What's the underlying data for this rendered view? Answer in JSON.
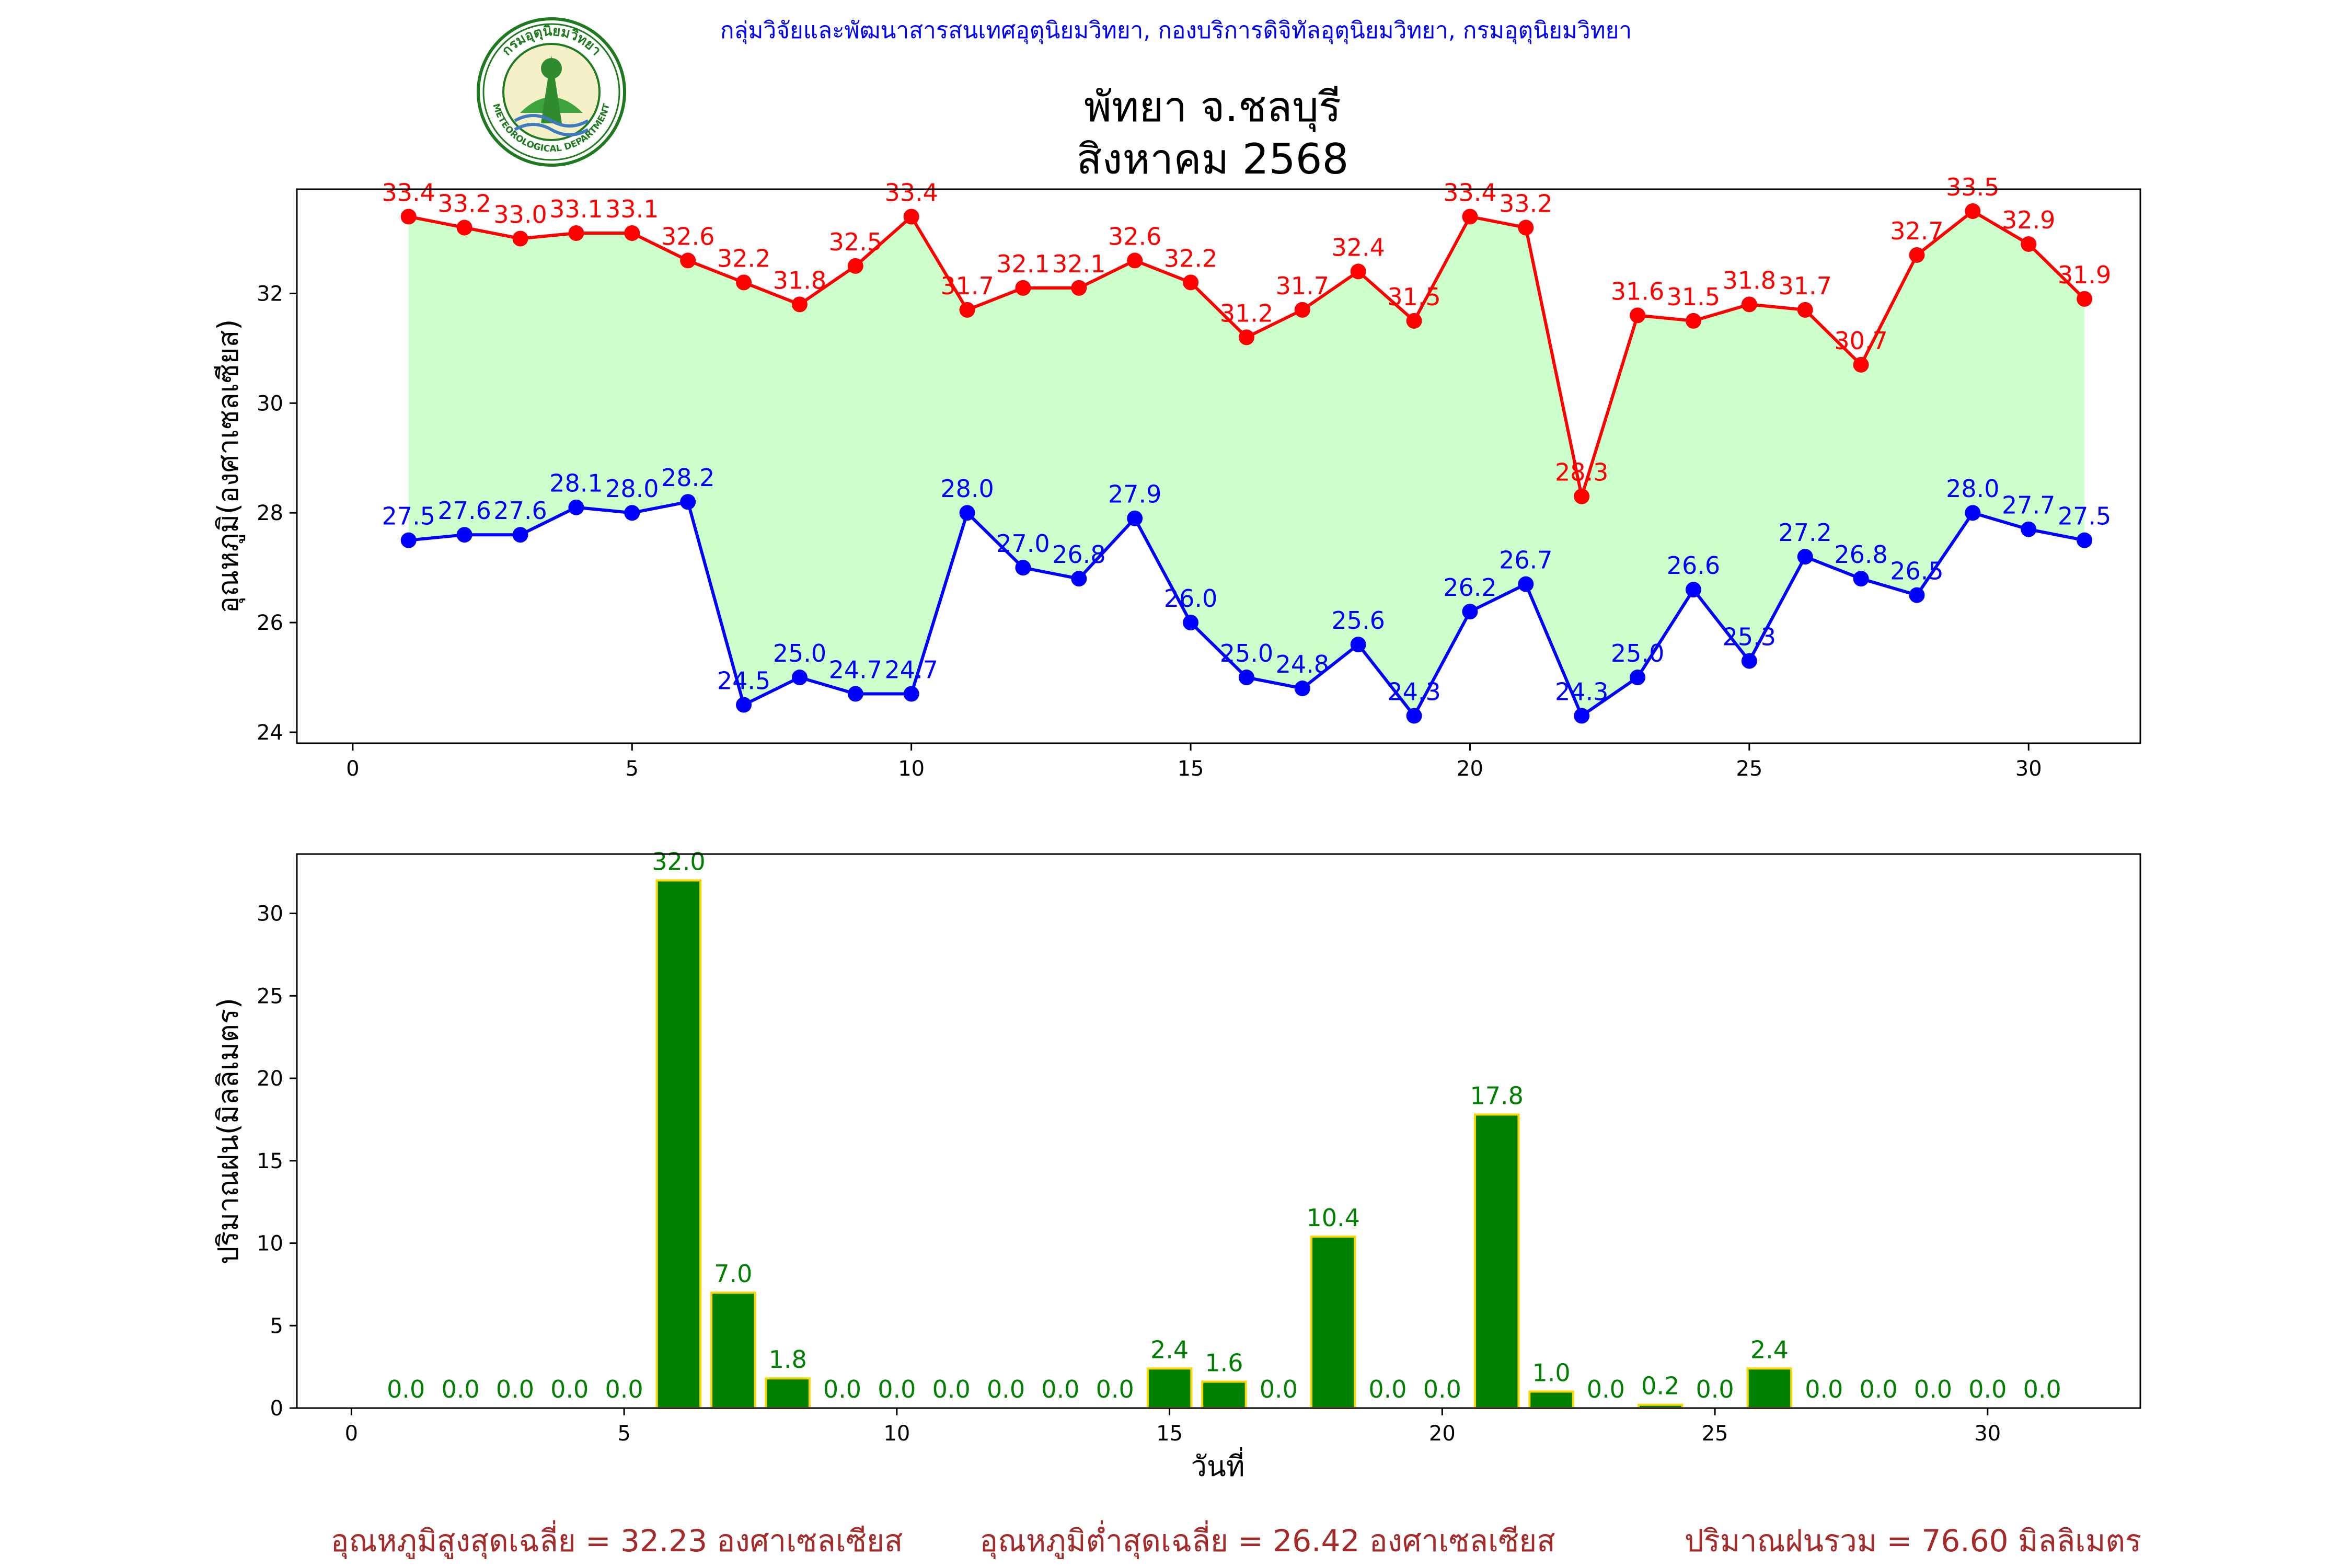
{
  "header": {
    "organization": "กลุ่มวิจัยและพัฒนาสารสนเทศอุตุนิยมวิทยา, กองบริการดิจิทัลอุตุนิยมวิทยา, กรมอุตุนิยมวิทยา",
    "title_line1": "พัทยา จ.ชลบุรี",
    "title_line2": "สิงหาคม 2568",
    "logo_text_top": "กรมอุตุนิยมวิทยา",
    "logo_text_bottom": "METEOROLOGICAL DEPARTMENT"
  },
  "colors": {
    "max_temp": "#ff0000",
    "min_temp": "#0000ff",
    "band_fill": "#ccffcc",
    "rain_bar": "#008000",
    "rain_edge": "#ffd700",
    "rain_label": "#008000",
    "summary": "#a52a2a",
    "header_blue": "#0000ff"
  },
  "chart_data": [
    {
      "type": "line",
      "x": [
        1,
        2,
        3,
        4,
        5,
        6,
        7,
        8,
        9,
        10,
        11,
        12,
        13,
        14,
        15,
        16,
        17,
        18,
        19,
        20,
        21,
        22,
        23,
        24,
        25,
        26,
        27,
        28,
        29,
        30,
        31
      ],
      "series": [
        {
          "key": "max",
          "values": [
            33.4,
            33.2,
            33.0,
            33.1,
            33.1,
            32.6,
            32.2,
            31.8,
            32.5,
            33.4,
            31.7,
            32.1,
            32.1,
            32.6,
            32.2,
            31.2,
            31.7,
            32.4,
            31.5,
            33.4,
            33.2,
            28.3,
            31.6,
            31.5,
            31.8,
            31.7,
            30.7,
            32.7,
            33.5,
            32.9,
            31.9
          ]
        },
        {
          "key": "min",
          "values": [
            27.5,
            27.6,
            27.6,
            28.1,
            28.0,
            28.2,
            24.5,
            25.0,
            24.7,
            24.7,
            28.0,
            27.0,
            26.8,
            27.9,
            26.0,
            25.0,
            24.8,
            25.6,
            24.3,
            26.2,
            26.7,
            24.3,
            25.0,
            26.6,
            25.3,
            27.2,
            26.8,
            26.5,
            28.0,
            27.7,
            27.5
          ]
        }
      ],
      "ylabel": "อุณหภูมิ(องศาเซลเซียส)",
      "xlim": [
        -1,
        32
      ],
      "ylim": [
        23.8,
        33.9
      ],
      "xticks": [
        0,
        5,
        10,
        15,
        20,
        25,
        30
      ],
      "yticks": [
        24,
        26,
        28,
        30,
        32
      ],
      "fill_between": true,
      "grid": false
    },
    {
      "type": "bar",
      "x": [
        1,
        2,
        3,
        4,
        5,
        6,
        7,
        8,
        9,
        10,
        11,
        12,
        13,
        14,
        15,
        16,
        17,
        18,
        19,
        20,
        21,
        22,
        23,
        24,
        25,
        26,
        27,
        28,
        29,
        30,
        31
      ],
      "values": [
        0.0,
        0.0,
        0.0,
        0.0,
        0.0,
        32.0,
        7.0,
        1.8,
        0.0,
        0.0,
        0.0,
        0.0,
        0.0,
        0.0,
        2.4,
        1.6,
        0.0,
        10.4,
        0.0,
        0.0,
        17.8,
        1.0,
        0.0,
        0.2,
        0.0,
        2.4,
        0.0,
        0.0,
        0.0,
        0.0,
        0.0
      ],
      "xlabel": "วันที่",
      "ylabel": "ปริมาณฝน(มิลลิเมตร)",
      "xlim": [
        -1.0,
        32.8
      ],
      "ylim": [
        0,
        33.6
      ],
      "xticks": [
        0,
        5,
        10,
        15,
        20,
        25,
        30
      ],
      "yticks": [
        0,
        5,
        10,
        15,
        20,
        25,
        30
      ],
      "grid": false
    }
  ],
  "summary": {
    "avg_max": "อุณหภูมิสูงสุดเฉลี่ย = 32.23 องศาเซลเซียส",
    "avg_min": "อุณหภูมิต่ำสุดเฉลี่ย = 26.42 องศาเซลเซียส",
    "total_rain": "ปริมาณฝนรวม = 76.60 มิลลิเมตร"
  }
}
